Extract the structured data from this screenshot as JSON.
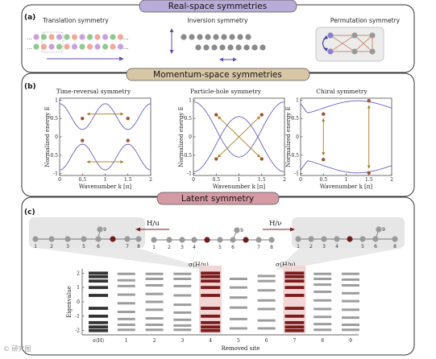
{
  "banners": {
    "real_space": "Real-space symmetries",
    "momentum_space": "Momentum-space symmetries",
    "latent": "Latent symmetry"
  },
  "panel_labels": {
    "a": "(a)",
    "b": "(b)",
    "c": "(c)"
  },
  "colors": {
    "banner_purple": "#b9acd9",
    "banner_tan": "#d8c7a4",
    "banner_pink": "#d69aa4",
    "curve": "#6a5fc0",
    "arrow_gold": "#a87b1e",
    "marker": "#a0522d",
    "dark_red": "#7a1a1a",
    "node_gray": "#9a9a9a",
    "level_gray": "#9d9d9d",
    "level_black": "#333333",
    "highlight": "#f2d6d6"
  },
  "panel_a": {
    "titles": [
      "Translation symmetry",
      "Inversion symmetry",
      "Permutation symmetry"
    ],
    "ellipsis": "..."
  },
  "panel_b": {
    "titles": [
      "Time-reversal symmetry",
      "Particle-hole symmetry",
      "Chiral symmetry"
    ],
    "ylabel": "Normalized energy E",
    "xlabel": "Wavenumber k [π]",
    "xticks": [
      "0",
      "0.5",
      "1",
      "1.5",
      "2"
    ],
    "yticks": [
      "1",
      "0.5",
      "0",
      "-0.5",
      "-1"
    ]
  },
  "panel_c": {
    "graph_left_label": "H/u",
    "graph_right_label": "H/ν",
    "graph_nodes": [
      "1",
      "2",
      "3",
      "4",
      "u",
      "5",
      "6",
      "ν",
      "7",
      "8"
    ],
    "graph_top_node": "9",
    "inset_left_nodes": [
      "1",
      "2",
      "3",
      "5",
      "6",
      "ν",
      "7",
      "8"
    ],
    "inset_right_nodes": [
      "1",
      "2",
      "3",
      "4",
      "u",
      "5",
      "6",
      "8"
    ],
    "sigma_labels": [
      "σ(H/u)",
      "σ(H/ν)"
    ],
    "ylabel": "Eigenvalue",
    "xlabel": "Removed site",
    "yticks": [
      "2",
      "1",
      "0",
      "-1",
      "-2"
    ],
    "xticks": [
      "σ(H)",
      "1",
      "2",
      "3",
      "4",
      "5",
      "6",
      "7",
      "8",
      "9"
    ]
  },
  "chart_data": {
    "type": "scatter",
    "title": "",
    "xlabel": "Removed site",
    "ylabel": "Eigenvalue",
    "ylim": [
      -2.3,
      2.3
    ],
    "categories": [
      "σ(H)",
      "1",
      "2",
      "3",
      "4",
      "5",
      "6",
      "7",
      "8",
      "9"
    ],
    "series": [
      {
        "values": [
          [
            2.0,
            1.75,
            1.45,
            1.0,
            0.45,
            -0.45,
            -1.0,
            -1.45,
            -1.75,
            -2.0
          ],
          [
            1.95,
            1.5,
            1.1,
            0.5,
            -0.1,
            -0.7,
            -1.2,
            -1.6,
            -1.95
          ],
          [
            1.95,
            1.6,
            1.15,
            0.55,
            0.0,
            -0.55,
            -1.15,
            -1.6,
            -1.95
          ],
          [
            1.95,
            1.6,
            1.1,
            0.45,
            -0.2,
            -0.75,
            -1.25,
            -1.65,
            -1.95
          ],
          [
            2.0,
            1.75,
            1.45,
            1.0,
            0.45,
            -0.45,
            -1.0,
            -1.45,
            -1.75,
            -2.0
          ],
          [
            1.6,
            1.0,
            0.3,
            -0.4,
            -1.2,
            -1.85
          ],
          [
            1.8,
            1.45,
            0.8,
            0.1,
            -0.5,
            -1.3,
            -1.85
          ],
          [
            2.0,
            1.75,
            1.45,
            1.0,
            0.45,
            -0.45,
            -1.0,
            -1.45,
            -1.75,
            -2.0
          ],
          [
            1.95,
            1.6,
            1.2,
            0.7,
            0.1,
            -0.5,
            -1.05,
            -1.55,
            -1.95
          ],
          [
            1.95,
            1.55,
            1.15,
            0.6,
            0.05,
            -0.55,
            -1.1,
            -1.6,
            -1.95
          ]
        ]
      }
    ]
  }
}
